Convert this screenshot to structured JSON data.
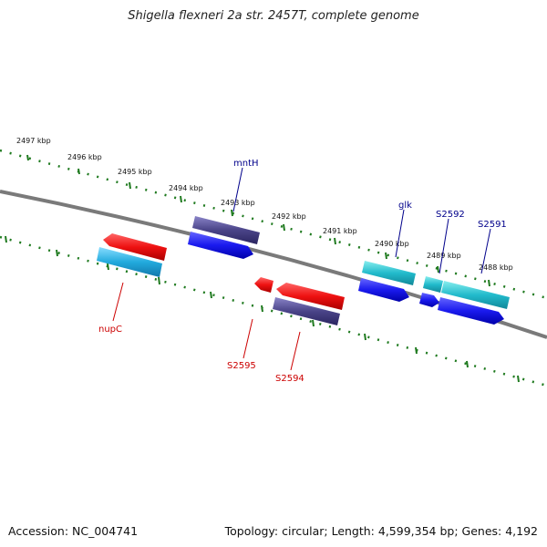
{
  "title": "Shigella flexneri 2a str. 2457T, complete genome",
  "footer": {
    "accession": "Accession: NC_004741",
    "topology": "Topology: circular; Length: 4,599,354 bp; Genes: 4,192"
  },
  "colors": {
    "backbone": "#7a7a7a",
    "tick": "#1f7a1f",
    "forward_label": "#00008b",
    "reverse_label": "#cc0000",
    "cds_red": "#ee1111",
    "cds_blue": "#1a1aee",
    "cds_cyan": "#22bbcc",
    "cds_lightblue": "#22aadd",
    "cds_navy": "#4a4488"
  },
  "kbp_labels": [
    "2497 kbp",
    "2496 kbp",
    "2495 kbp",
    "2494 kbp",
    "2493 kbp",
    "2492 kbp",
    "2491 kbp",
    "2490 kbp",
    "2489 kbp",
    "2488 kbp"
  ],
  "genes": [
    {
      "name": "mntH",
      "strand": "forward"
    },
    {
      "name": "glk",
      "strand": "forward"
    },
    {
      "name": "S2592",
      "strand": "forward"
    },
    {
      "name": "S2591",
      "strand": "forward"
    },
    {
      "name": "nupC",
      "strand": "reverse"
    },
    {
      "name": "S2595",
      "strand": "reverse"
    },
    {
      "name": "S2594",
      "strand": "reverse"
    }
  ]
}
